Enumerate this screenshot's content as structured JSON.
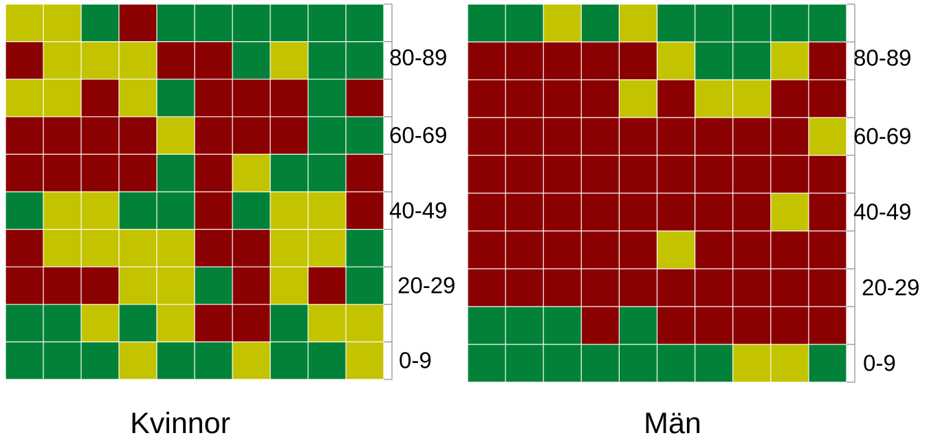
{
  "colors": {
    "green": "#028239",
    "yellow": "#c4c300",
    "red": "#8b0001",
    "grid": "#ffffff",
    "axis": "#8c8c8c"
  },
  "chart_data": [
    {
      "type": "heatmap",
      "title": "Kvinnor",
      "ytick_labels": [
        "80-89",
        "60-69",
        "40-49",
        "20-29",
        "0-9"
      ],
      "legend": {
        "g": "green",
        "y": "yellow",
        "r": "red"
      },
      "rows_top_to_bottom": [
        [
          "y",
          "y",
          "g",
          "r",
          "g",
          "g",
          "g",
          "g",
          "g",
          "g"
        ],
        [
          "r",
          "y",
          "y",
          "y",
          "r",
          "r",
          "g",
          "y",
          "g",
          "g"
        ],
        [
          "y",
          "y",
          "r",
          "y",
          "g",
          "r",
          "r",
          "r",
          "g",
          "r"
        ],
        [
          "r",
          "r",
          "r",
          "r",
          "y",
          "r",
          "r",
          "r",
          "g",
          "g"
        ],
        [
          "r",
          "r",
          "r",
          "r",
          "g",
          "r",
          "y",
          "g",
          "g",
          "r"
        ],
        [
          "g",
          "y",
          "y",
          "g",
          "g",
          "r",
          "g",
          "y",
          "y",
          "r"
        ],
        [
          "r",
          "y",
          "y",
          "y",
          "y",
          "r",
          "r",
          "y",
          "y",
          "g"
        ],
        [
          "r",
          "r",
          "r",
          "y",
          "y",
          "g",
          "r",
          "y",
          "r",
          "g"
        ],
        [
          "g",
          "g",
          "y",
          "g",
          "y",
          "r",
          "r",
          "g",
          "y",
          "y"
        ],
        [
          "g",
          "g",
          "g",
          "y",
          "g",
          "g",
          "y",
          "g",
          "g",
          "y"
        ]
      ]
    },
    {
      "type": "heatmap",
      "title": "Män",
      "ytick_labels": [
        "80-89",
        "60-69",
        "40-49",
        "20-29",
        "0-9"
      ],
      "legend": {
        "g": "green",
        "y": "yellow",
        "r": "red"
      },
      "rows_top_to_bottom": [
        [
          "g",
          "g",
          "y",
          "g",
          "y",
          "g",
          "g",
          "g",
          "g",
          "g"
        ],
        [
          "r",
          "r",
          "r",
          "r",
          "r",
          "y",
          "g",
          "g",
          "y",
          "r"
        ],
        [
          "r",
          "r",
          "r",
          "r",
          "y",
          "r",
          "y",
          "y",
          "r",
          "r"
        ],
        [
          "r",
          "r",
          "r",
          "r",
          "r",
          "r",
          "r",
          "r",
          "r",
          "y"
        ],
        [
          "r",
          "r",
          "r",
          "r",
          "r",
          "r",
          "r",
          "r",
          "r",
          "r"
        ],
        [
          "r",
          "r",
          "r",
          "r",
          "r",
          "r",
          "r",
          "r",
          "y",
          "r"
        ],
        [
          "r",
          "r",
          "r",
          "r",
          "r",
          "y",
          "r",
          "r",
          "r",
          "r"
        ],
        [
          "r",
          "r",
          "r",
          "r",
          "r",
          "r",
          "r",
          "r",
          "r",
          "r"
        ],
        [
          "g",
          "g",
          "g",
          "r",
          "g",
          "r",
          "r",
          "r",
          "r",
          "r"
        ],
        [
          "g",
          "g",
          "g",
          "g",
          "g",
          "g",
          "g",
          "y",
          "y",
          "g"
        ]
      ]
    }
  ]
}
